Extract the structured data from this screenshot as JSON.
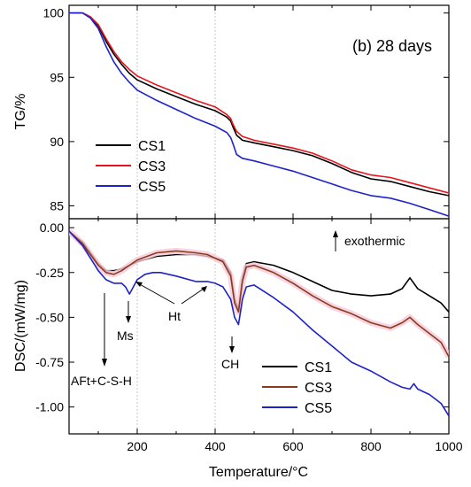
{
  "chart_data": [
    {
      "type": "line",
      "panel": "top",
      "title": "(b) 28 days",
      "xlabel": "",
      "ylabel": "TG/%",
      "xlim": [
        25,
        1000
      ],
      "ylim": [
        84,
        100.6
      ],
      "yticks": [
        85,
        90,
        95,
        100
      ],
      "legend_placement": "bottom-left",
      "series": [
        {
          "name": "CS1",
          "color": "#000000",
          "x": [
            25,
            60,
            80,
            100,
            120,
            140,
            160,
            180,
            200,
            250,
            300,
            350,
            400,
            430,
            440,
            445,
            455,
            470,
            500,
            550,
            600,
            650,
            700,
            750,
            800,
            850,
            900,
            950,
            1000
          ],
          "y": [
            100,
            100,
            99.7,
            99,
            97.8,
            96.8,
            96,
            95.3,
            94.8,
            94.1,
            93.5,
            92.9,
            92.4,
            91.9,
            91.6,
            91.2,
            90.5,
            90.1,
            89.9,
            89.6,
            89.3,
            88.9,
            88.3,
            87.6,
            87.1,
            86.9,
            86.5,
            86.1,
            85.8
          ]
        },
        {
          "name": "CS3",
          "color": "#e8141c",
          "x": [
            25,
            60,
            80,
            100,
            120,
            140,
            160,
            180,
            200,
            250,
            300,
            350,
            400,
            430,
            440,
            445,
            455,
            470,
            500,
            550,
            600,
            650,
            700,
            750,
            800,
            850,
            900,
            950,
            1000
          ],
          "y": [
            100,
            100,
            99.7,
            99.1,
            98,
            97,
            96.2,
            95.6,
            95.1,
            94.4,
            93.8,
            93.2,
            92.7,
            92.1,
            91.8,
            91.4,
            90.8,
            90.4,
            90.1,
            89.8,
            89.5,
            89.1,
            88.5,
            87.8,
            87.4,
            87.2,
            86.8,
            86.4,
            86
          ]
        },
        {
          "name": "CS5",
          "color": "#1e22c8",
          "x": [
            25,
            60,
            80,
            100,
            120,
            140,
            160,
            180,
            200,
            250,
            300,
            350,
            400,
            430,
            440,
            445,
            455,
            470,
            500,
            550,
            600,
            650,
            700,
            750,
            800,
            850,
            900,
            950,
            1000
          ],
          "y": [
            100,
            100,
            99.6,
            98.8,
            97.4,
            96.2,
            95.3,
            94.6,
            94,
            93.2,
            92.5,
            91.8,
            91.2,
            90.7,
            90.3,
            89.9,
            89,
            88.7,
            88.5,
            88.1,
            87.7,
            87.2,
            86.7,
            86.2,
            85.8,
            85.6,
            85.2,
            84.7,
            84.2
          ]
        }
      ]
    },
    {
      "type": "line",
      "panel": "bottom",
      "title": "",
      "xlabel": "Temperature/°C",
      "ylabel": "DSC/(mW/mg)",
      "xlim": [
        25,
        1000
      ],
      "ylim": [
        -1.15,
        0.05
      ],
      "xticks": [
        200,
        400,
        600,
        800,
        1000
      ],
      "yticks": [
        0.0,
        -0.25,
        -0.5,
        -0.75,
        -1.0
      ],
      "ytick_labels": [
        "0.00",
        "-0.25",
        "-0.50",
        "-0.75",
        "-1.00"
      ],
      "legend_placement": "bottom-right",
      "series": [
        {
          "name": "CS1",
          "color": "#000000",
          "x": [
            25,
            60,
            100,
            120,
            140,
            160,
            180,
            200,
            250,
            300,
            350,
            380,
            400,
            420,
            440,
            450,
            460,
            470,
            480,
            500,
            550,
            600,
            650,
            700,
            750,
            800,
            850,
            880,
            900,
            920,
            950,
            980,
            1000
          ],
          "y": [
            -0.02,
            -0.08,
            -0.2,
            -0.24,
            -0.24,
            -0.23,
            -0.21,
            -0.19,
            -0.16,
            -0.15,
            -0.15,
            -0.16,
            -0.17,
            -0.18,
            -0.25,
            -0.4,
            -0.45,
            -0.28,
            -0.2,
            -0.19,
            -0.21,
            -0.25,
            -0.3,
            -0.35,
            -0.37,
            -0.38,
            -0.37,
            -0.34,
            -0.28,
            -0.34,
            -0.38,
            -0.42,
            -0.47
          ]
        },
        {
          "name": "CS3",
          "color": "#8b3a1e",
          "x": [
            25,
            60,
            100,
            120,
            140,
            160,
            180,
            200,
            250,
            300,
            350,
            380,
            400,
            420,
            440,
            450,
            460,
            470,
            480,
            500,
            550,
            600,
            650,
            700,
            750,
            800,
            850,
            880,
            900,
            920,
            950,
            980,
            1000
          ],
          "y": [
            -0.02,
            -0.09,
            -0.21,
            -0.25,
            -0.26,
            -0.24,
            -0.21,
            -0.18,
            -0.14,
            -0.13,
            -0.14,
            -0.15,
            -0.17,
            -0.19,
            -0.27,
            -0.42,
            -0.47,
            -0.3,
            -0.22,
            -0.21,
            -0.25,
            -0.31,
            -0.38,
            -0.44,
            -0.48,
            -0.53,
            -0.56,
            -0.53,
            -0.5,
            -0.54,
            -0.59,
            -0.64,
            -0.72
          ]
        },
        {
          "name": "CS5",
          "color": "#1e22c8",
          "x": [
            25,
            60,
            100,
            120,
            140,
            160,
            170,
            180,
            190,
            200,
            220,
            240,
            260,
            300,
            350,
            380,
            400,
            420,
            440,
            450,
            460,
            470,
            480,
            500,
            550,
            600,
            650,
            700,
            750,
            800,
            850,
            880,
            900,
            910,
            920,
            950,
            980,
            1000
          ],
          "y": [
            -0.02,
            -0.1,
            -0.24,
            -0.29,
            -0.31,
            -0.31,
            -0.33,
            -0.37,
            -0.33,
            -0.29,
            -0.26,
            -0.25,
            -0.25,
            -0.27,
            -0.3,
            -0.3,
            -0.31,
            -0.33,
            -0.4,
            -0.5,
            -0.54,
            -0.4,
            -0.33,
            -0.32,
            -0.39,
            -0.47,
            -0.57,
            -0.66,
            -0.75,
            -0.8,
            -0.86,
            -0.89,
            -0.9,
            -0.87,
            -0.9,
            -0.93,
            -0.98,
            -1.05
          ]
        }
      ],
      "annotations": {
        "exothermic": "exothermic",
        "aft": "AFt+C-S-H",
        "ms": "Ms",
        "ht": "Ht",
        "ch": "CH"
      }
    }
  ]
}
